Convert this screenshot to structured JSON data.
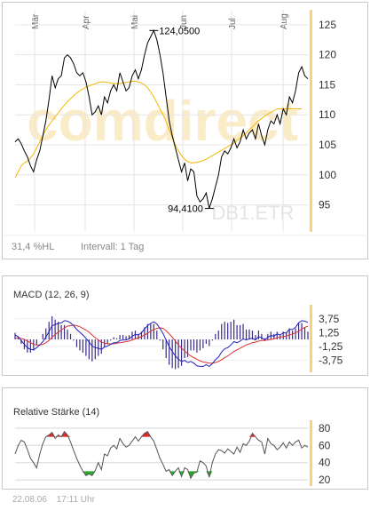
{
  "watermark": "comdirect",
  "symbol": "DB1.ETR",
  "info": {
    "hl": "31,4 %HL",
    "interval": "Intervall: 1 Tag"
  },
  "footer": {
    "date": "22.08.06",
    "time": "17:11 Uhr"
  },
  "colors": {
    "price": "#000000",
    "ma": "#f5b800",
    "macd": "#2020c0",
    "signal": "#e03030",
    "histogram": "#3a2a8a",
    "rsi": "#555555",
    "rsi_high": "#dd2222",
    "rsi_low": "#22aa22",
    "axis_bar": "#f7d27a"
  },
  "chart_data": [
    {
      "type": "line",
      "months": [
        "Mär",
        "Apr",
        "Mai",
        "Jun",
        "Jul",
        "Aug"
      ],
      "y_ticks": [
        125,
        120,
        115,
        110,
        105,
        100,
        95
      ],
      "ylim": [
        90.5,
        127.5
      ],
      "annotations": [
        {
          "label": "124,0500",
          "value": 124.05
        },
        {
          "label": "94,4100",
          "value": 94.41
        }
      ],
      "series": [
        {
          "values": [
            105.5,
            106,
            105.2,
            104,
            103,
            101.5,
            100.5,
            102.5,
            104,
            106.5,
            109,
            112.5,
            116.5,
            114.5,
            116,
            116.5,
            119.5,
            120,
            119.5,
            118.5,
            117,
            116.5,
            117,
            115.5,
            113,
            110,
            110.5,
            111.5,
            110,
            113,
            112,
            114,
            115,
            114,
            117,
            115.5,
            114,
            114.5,
            116.5,
            117.5,
            116,
            117.5,
            120,
            122,
            123,
            124.05,
            122.5,
            120,
            117,
            113,
            109,
            106.5,
            104.5,
            102.5,
            100.5,
            102,
            99,
            101,
            100.5,
            96.5,
            95.5,
            96,
            97,
            94.41,
            96,
            98,
            100,
            103,
            104,
            103.5,
            104.5,
            106,
            104.5,
            105.5,
            107.5,
            106,
            107,
            107.5,
            106,
            108.5,
            106.5,
            105,
            107.5,
            109,
            108.5,
            110,
            108.5,
            111,
            110,
            113,
            112,
            114,
            117,
            118,
            116.5,
            116
          ]
        },
        {
          "values": [
            99.5,
            100.5,
            101.5,
            102,
            102.3,
            102.8,
            103.5,
            104.5,
            105.5,
            106.5,
            107.5,
            108.3,
            109,
            109.7,
            110.3,
            111,
            111.6,
            112.2,
            112.7,
            113.2,
            113.6,
            114,
            114.3,
            114.6,
            114.8,
            115,
            115.2,
            115.4,
            115.5,
            115.5,
            115.4,
            115.3,
            115.2,
            115.2,
            115.2,
            115.3,
            115.4,
            115.5,
            115.6,
            115.6,
            115.5,
            115.3,
            115,
            114.5,
            113.8,
            113,
            112,
            111,
            110,
            108.8,
            107.5,
            106.2,
            105,
            104,
            103.2,
            102.6,
            102.2,
            102,
            102,
            102.1,
            102.2,
            102.4,
            102.6,
            102.9,
            103.2,
            103.5,
            103.8,
            104.1,
            104.4,
            104.7,
            105,
            105.3,
            105.7,
            106.1,
            106.5,
            107,
            107.5,
            108,
            108.5,
            109,
            109.4,
            109.8,
            110.1,
            110.4,
            110.7,
            111,
            111,
            111,
            111,
            111,
            111,
            111,
            111,
            111
          ]
        }
      ]
    },
    {
      "type": "line",
      "title": "MACD (12, 26, 9)",
      "y_ticks": [
        "3,75",
        "1,25",
        "-1,25",
        "-3,75"
      ],
      "ylim": [
        -5,
        5
      ],
      "series": [
        {
          "values": [
            0.8,
            0.5,
            -0.2,
            -0.9,
            -1.5,
            -1.8,
            -1.9,
            -1.5,
            -1.0,
            -0.4,
            0.4,
            1.4,
            2.5,
            2.7,
            2.9,
            3.0,
            3.4,
            3.3,
            3.0,
            2.5,
            1.8,
            1.3,
            0.8,
            0.2,
            -0.5,
            -1.2,
            -1.5,
            -1.6,
            -1.8,
            -1.4,
            -1.2,
            -0.9,
            -0.6,
            -0.6,
            -0.2,
            -0.1,
            -0.1,
            0.1,
            0.6,
            0.9,
            0.8,
            1.2,
            1.9,
            2.5,
            2.9,
            3.2,
            2.8,
            2.0,
            1.1,
            -0.1,
            -1.3,
            -2.2,
            -3.0,
            -3.6,
            -4.0,
            -3.8,
            -4.2,
            -4.0,
            -4.3,
            -4.8,
            -4.9,
            -4.9,
            -4.6,
            -4.9,
            -4.4,
            -3.7,
            -3.2,
            -2.3,
            -1.7,
            -1.5,
            -1.0,
            -0.4,
            -0.6,
            -0.3,
            0.1,
            -0.1,
            0.1,
            0.2,
            -0.1,
            0.5,
            0.3,
            -0.1,
            0.4,
            0.7,
            0.6,
            1.0,
            0.8,
            1.2,
            1.2,
            1.8,
            1.8,
            2.2,
            3.0,
            3.4,
            3.3,
            3.1
          ]
        },
        {
          "values": [
            0.2,
            0.3,
            0.2,
            0.0,
            -0.3,
            -0.6,
            -0.9,
            -1.0,
            -1.0,
            -0.9,
            -0.6,
            -0.2,
            0.4,
            0.9,
            1.3,
            1.7,
            2.1,
            2.4,
            2.5,
            2.6,
            2.5,
            2.3,
            2.0,
            1.7,
            1.3,
            0.8,
            0.3,
            -0.1,
            -0.5,
            -0.7,
            -0.8,
            -0.8,
            -0.8,
            -0.7,
            -0.6,
            -0.5,
            -0.4,
            -0.3,
            -0.1,
            0.1,
            0.3,
            0.5,
            0.8,
            1.1,
            1.5,
            1.8,
            2.0,
            2.1,
            2.0,
            1.6,
            1.0,
            0.4,
            -0.3,
            -1.0,
            -1.6,
            -2.1,
            -2.6,
            -3.0,
            -3.3,
            -3.6,
            -3.9,
            -4.1,
            -4.2,
            -4.3,
            -4.3,
            -4.2,
            -4.0,
            -3.7,
            -3.3,
            -3.0,
            -2.6,
            -2.2,
            -1.9,
            -1.6,
            -1.3,
            -1.0,
            -0.8,
            -0.6,
            -0.5,
            -0.3,
            -0.2,
            -0.2,
            -0.1,
            0.0,
            0.1,
            0.3,
            0.4,
            0.5,
            0.6,
            0.8,
            1.0,
            1.2,
            1.5,
            1.9,
            2.2,
            2.4
          ]
        }
      ]
    },
    {
      "type": "line",
      "title": "Relative Stärke (14)",
      "y_ticks": [
        80,
        60,
        40,
        20
      ],
      "ylim": [
        15,
        85
      ],
      "thresholds": [
        70,
        30
      ],
      "series": [
        {
          "values": [
            50,
            60,
            66,
            64,
            55,
            45,
            40,
            34,
            50,
            62,
            70,
            72,
            75,
            68,
            72,
            70,
            76,
            72,
            64,
            54,
            45,
            37,
            30,
            25,
            27,
            25,
            31,
            40,
            32,
            50,
            48,
            57,
            60,
            56,
            68,
            62,
            58,
            60,
            65,
            70,
            65,
            70,
            74,
            76,
            70,
            65,
            55,
            45,
            38,
            30,
            32,
            25,
            30,
            34,
            24,
            34,
            32,
            22,
            28,
            29,
            42,
            40,
            36,
            23,
            40,
            50,
            55,
            54,
            51,
            56,
            53,
            50,
            58,
            52,
            62,
            60,
            65,
            74,
            70,
            66,
            64,
            50,
            68,
            62,
            60,
            55,
            58,
            63,
            57,
            64,
            60,
            64,
            66,
            57,
            60,
            58
          ]
        }
      ]
    }
  ]
}
